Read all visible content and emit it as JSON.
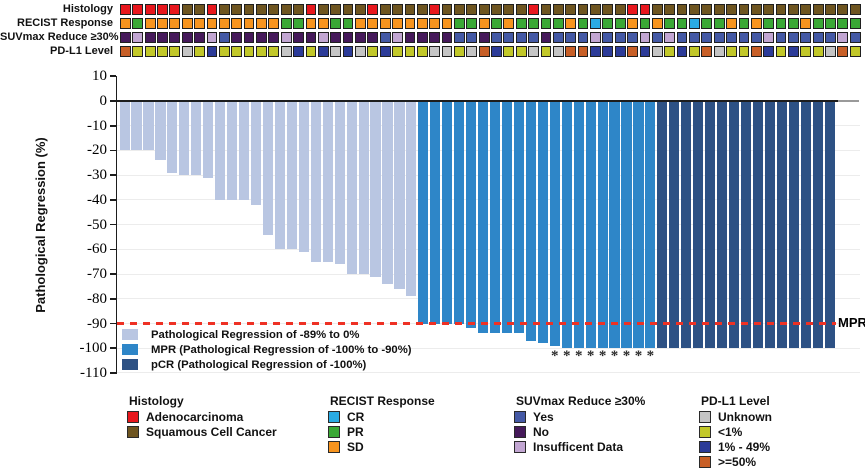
{
  "figure": {
    "description": "Waterfall plot of pathological regression per patient with clinical annotation tracks"
  },
  "colors": {
    "bars": {
      "reg": "#b9c6e2",
      "mpr": "#2e86c8",
      "pcr": "#2d5184"
    },
    "tracks": {
      "adeno": "#e8171d",
      "squamous": "#6e5520",
      "cr": "#2aabe3",
      "pr": "#3aa835",
      "sd": "#f7941e",
      "yes": "#4459a5",
      "no": "#45195a",
      "insufficient": "#c2a6d2",
      "unknown": "#c5c5c5",
      "lt1": "#c2c829",
      "p1_49": "#2c3b98",
      "ge50": "#c85f27"
    },
    "reference_line": "#ee3124",
    "axis": "#1d1d1d"
  },
  "tracks": {
    "rows": [
      {
        "label": "Histology",
        "cells": [
          "adeno",
          "adeno",
          "adeno",
          "adeno",
          "adeno",
          "squamous",
          "squamous",
          "adeno",
          "squamous",
          "squamous",
          "squamous",
          "squamous",
          "squamous",
          "squamous",
          "squamous",
          "adeno",
          "squamous",
          "squamous",
          "squamous",
          "squamous",
          "adeno",
          "squamous",
          "squamous",
          "squamous",
          "squamous",
          "adeno",
          "squamous",
          "squamous",
          "squamous",
          "squamous",
          "squamous",
          "squamous",
          "squamous",
          "adeno",
          "squamous",
          "squamous",
          "squamous",
          "squamous",
          "squamous",
          "squamous",
          "squamous",
          "adeno",
          "adeno",
          "squamous",
          "squamous",
          "squamous",
          "squamous",
          "squamous",
          "squamous",
          "squamous",
          "squamous",
          "squamous",
          "squamous",
          "squamous",
          "squamous",
          "squamous",
          "squamous",
          "squamous",
          "squamous",
          "squamous"
        ]
      },
      {
        "label": "RECIST Response",
        "cells": [
          "sd",
          "pr",
          "sd",
          "sd",
          "sd",
          "sd",
          "sd",
          "sd",
          "sd",
          "sd",
          "sd",
          "sd",
          "sd",
          "pr",
          "pr",
          "sd",
          "sd",
          "pr",
          "pr",
          "sd",
          "sd",
          "sd",
          "sd",
          "sd",
          "sd",
          "sd",
          "sd",
          "pr",
          "pr",
          "sd",
          "pr",
          "sd",
          "pr",
          "pr",
          "pr",
          "pr",
          "sd",
          "pr",
          "cr",
          "pr",
          "pr",
          "sd",
          "pr",
          "sd",
          "pr",
          "pr",
          "cr",
          "pr",
          "pr",
          "sd",
          "pr",
          "sd",
          "pr",
          "pr",
          "pr",
          "sd",
          "pr",
          "pr",
          "pr",
          "pr"
        ]
      },
      {
        "label": "SUVmax Reduce ≥30%",
        "cells": [
          "no",
          "insufficient",
          "no",
          "no",
          "no",
          "no",
          "no",
          "insufficient",
          "yes",
          "no",
          "no",
          "no",
          "no",
          "insufficient",
          "no",
          "no",
          "insufficient",
          "no",
          "no",
          "no",
          "no",
          "yes",
          "insufficient",
          "no",
          "no",
          "no",
          "no",
          "yes",
          "yes",
          "no",
          "yes",
          "yes",
          "yes",
          "yes",
          "no",
          "yes",
          "yes",
          "yes",
          "insufficient",
          "yes",
          "yes",
          "yes",
          "insufficient",
          "yes",
          "insufficient",
          "yes",
          "yes",
          "yes",
          "yes",
          "yes",
          "yes",
          "yes",
          "insufficient",
          "yes",
          "yes",
          "yes",
          "yes",
          "yes",
          "insufficient",
          "yes"
        ]
      },
      {
        "label": "PD-L1 Level",
        "cells": [
          "ge50",
          "lt1",
          "lt1",
          "lt1",
          "lt1",
          "unknown",
          "lt1",
          "p1_49",
          "lt1",
          "lt1",
          "lt1",
          "lt1",
          "lt1",
          "unknown",
          "p1_49",
          "lt1",
          "p1_49",
          "unknown",
          "p1_49",
          "unknown",
          "lt1",
          "p1_49",
          "lt1",
          "lt1",
          "lt1",
          "unknown",
          "unknown",
          "lt1",
          "unknown",
          "ge50",
          "p1_49",
          "lt1",
          "lt1",
          "unknown",
          "lt1",
          "unknown",
          "ge50",
          "ge50",
          "p1_49",
          "p1_49",
          "p1_49",
          "ge50",
          "p1_49",
          "unknown",
          "lt1",
          "p1_49",
          "lt1",
          "ge50",
          "unknown",
          "lt1",
          "lt1",
          "ge50",
          "p1_49",
          "lt1",
          "p1_49",
          "lt1",
          "lt1",
          "unknown",
          "ge50",
          "lt1"
        ]
      }
    ]
  },
  "chart_data": {
    "type": "bar",
    "title": "",
    "ylabel": "Pathological Regression (%)",
    "ylim": [
      -110,
      10
    ],
    "yticks": [
      10,
      0,
      -10,
      -20,
      -30,
      -40,
      -50,
      -60,
      -70,
      -80,
      -90,
      -100,
      -110
    ],
    "grid": "horizontal-faint",
    "series": [
      {
        "name": "Pathological Regression of -89% to 0%",
        "class": "reg",
        "values": [
          -20,
          -20,
          -20,
          -24,
          -29,
          -30,
          -30,
          -31,
          -40,
          -40,
          -40,
          -42,
          -54,
          -60,
          -60,
          -61,
          -65,
          -65,
          -66,
          -70,
          -70,
          -71,
          -74,
          -76,
          -79
        ]
      },
      {
        "name": "MPR (Pathological Regression of -100% to -90%)",
        "class": "mpr",
        "values": [
          -90,
          -90,
          -90,
          -90,
          -92,
          -94,
          -94,
          -94,
          -94,
          -97,
          -98,
          -99,
          -100,
          -100,
          -100,
          -100,
          -100,
          -100,
          -100,
          -100
        ]
      },
      {
        "name": "pCR (Pathological Regression of -100%)",
        "class": "pcr",
        "values": [
          -100,
          -100,
          -100,
          -100,
          -100,
          -100,
          -100,
          -100,
          -100,
          -100,
          -100,
          -100,
          -100,
          -100,
          -100
        ]
      }
    ],
    "asterisk_bar_indices": [
      36,
      37,
      38,
      39,
      40,
      41,
      42,
      43,
      44
    ],
    "asterisk_symbol": "*",
    "reference_line": {
      "y": -90,
      "label": "MPR",
      "style": "dashed"
    }
  },
  "plot_legend": {
    "items": [
      {
        "label": "Pathological Regression of -89% to 0%",
        "color_key": "reg"
      },
      {
        "label": "MPR (Pathological Regression of -100% to -90%)",
        "color_key": "mpr"
      },
      {
        "label": "pCR (Pathological Regression of -100%)",
        "color_key": "pcr"
      }
    ]
  },
  "bottom_legend": {
    "groups": [
      {
        "title": "Histology",
        "items": [
          {
            "label": "Adenocarcinoma",
            "color_key": "adeno"
          },
          {
            "label": "Squamous Cell Cancer",
            "color_key": "squamous"
          }
        ]
      },
      {
        "title": "RECIST Response",
        "items": [
          {
            "label": "CR",
            "color_key": "cr"
          },
          {
            "label": "PR",
            "color_key": "pr"
          },
          {
            "label": "SD",
            "color_key": "sd"
          }
        ]
      },
      {
        "title": "SUVmax Reduce ≥30%",
        "items": [
          {
            "label": "Yes",
            "color_key": "yes"
          },
          {
            "label": "No",
            "color_key": "no"
          },
          {
            "label": "Insufficent Data",
            "color_key": "insufficient"
          }
        ]
      },
      {
        "title": "PD-L1 Level",
        "items": [
          {
            "label": "Unknown",
            "color_key": "unknown"
          },
          {
            "label": "<1%",
            "color_key": "lt1"
          },
          {
            "label": "1% - 49%",
            "color_key": "p1_49"
          },
          {
            "label": ">=50%",
            "color_key": "ge50"
          }
        ]
      }
    ]
  }
}
